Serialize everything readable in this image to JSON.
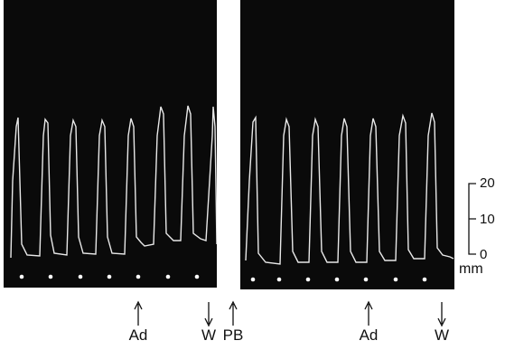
{
  "scale": {
    "ticks": [
      "20",
      "10",
      "0"
    ],
    "unit": "mm"
  },
  "markers": [
    {
      "label": "Ad",
      "direction": "up"
    },
    {
      "label": "W",
      "direction": "down"
    },
    {
      "label": "PB",
      "direction": "up"
    },
    {
      "label": "Ad",
      "direction": "up"
    },
    {
      "label": "W",
      "direction": "down"
    }
  ],
  "trace_color": "#e8e8e8",
  "panel_color": "#0a0a0a"
}
